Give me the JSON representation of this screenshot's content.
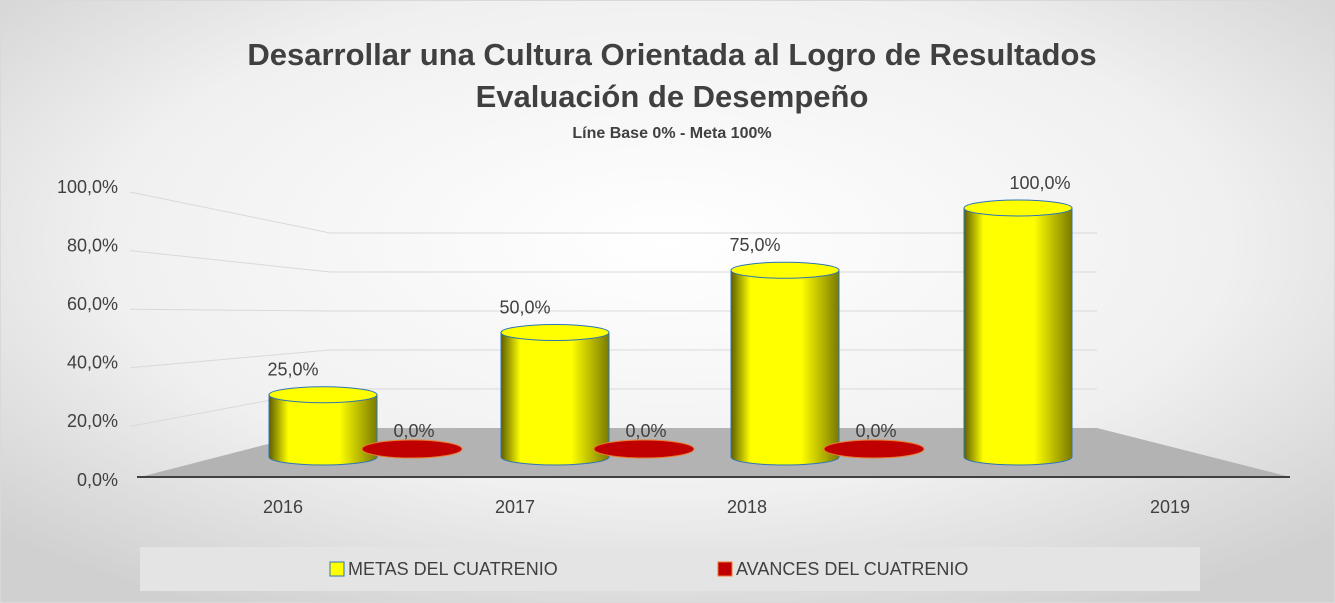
{
  "chart_data": {
    "type": "bar3d",
    "title": [
      "Desarrollar una Cultura Orientada al Logro de Resultados",
      "Evaluación de Desempeño"
    ],
    "subtitle": "Líne Base 0% - Meta 100%",
    "categories": [
      "2016",
      "2017",
      "2018",
      "2019"
    ],
    "series": [
      {
        "name": "METAS DEL CUATRENIO",
        "color": "#ffff00",
        "values": [
          25,
          50,
          75,
          100
        ],
        "value_labels": [
          "25,0%",
          "50,0%",
          "75,0%",
          "100,0%"
        ]
      },
      {
        "name": "AVANCES DEL CUATRENIO",
        "color": "#c00000",
        "values": [
          0,
          0,
          0,
          null
        ],
        "value_labels": [
          "0,0%",
          "0,0%",
          "0,0%",
          null
        ]
      }
    ],
    "ylim": [
      0,
      100
    ],
    "yticks": [
      {
        "value": 0,
        "label": "0,0%"
      },
      {
        "value": 20,
        "label": "20,0%"
      },
      {
        "value": 40,
        "label": "40,0%"
      },
      {
        "value": 60,
        "label": "60,0%"
      },
      {
        "value": 80,
        "label": "80,0%"
      },
      {
        "value": 100,
        "label": "100,0%"
      }
    ],
    "grid": true,
    "legend": "bottom"
  }
}
